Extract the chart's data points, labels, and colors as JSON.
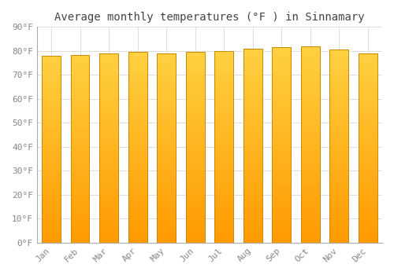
{
  "title": "Average monthly temperatures (°F ) in Sinnamary",
  "months": [
    "Jan",
    "Feb",
    "Mar",
    "Apr",
    "May",
    "Jun",
    "Jul",
    "Aug",
    "Sep",
    "Oct",
    "Nov",
    "Dec"
  ],
  "values": [
    78.1,
    78.4,
    79.0,
    79.5,
    79.0,
    79.5,
    80.0,
    81.0,
    81.5,
    82.0,
    80.5,
    79.0
  ],
  "ylim": [
    0,
    90
  ],
  "yticks": [
    0,
    10,
    20,
    30,
    40,
    50,
    60,
    70,
    80,
    90
  ],
  "ytick_labels": [
    "0°F",
    "10°F",
    "20°F",
    "30°F",
    "40°F",
    "50°F",
    "60°F",
    "70°F",
    "80°F",
    "90°F"
  ],
  "bar_color_top": "#FFD040",
  "bar_color_bottom": "#FF9900",
  "bar_edge_color": "#CC8800",
  "background_color": "#FFFFFF",
  "plot_bg_color": "#FFFFFF",
  "grid_color": "#DDDDDD",
  "title_fontsize": 10,
  "tick_fontsize": 8,
  "title_color": "#444444",
  "tick_color": "#888888",
  "bar_width": 0.65
}
